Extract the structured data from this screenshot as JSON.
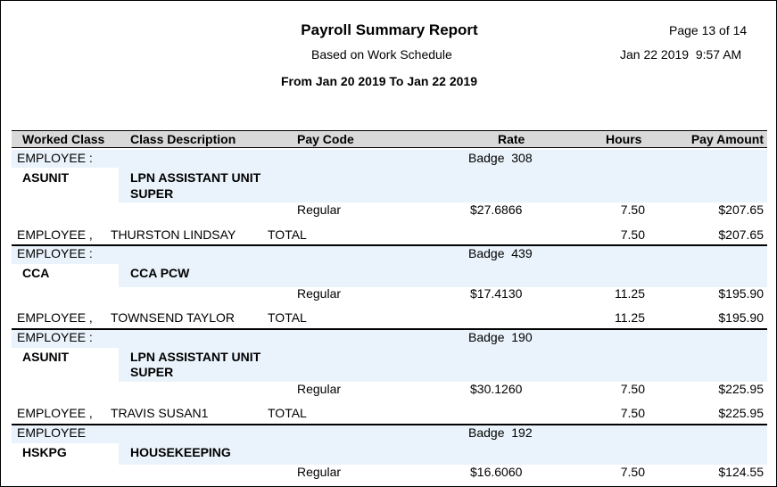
{
  "report": {
    "title": "Payroll Summary Report",
    "subtitle": "Based on Work Schedule",
    "date_range": "From Jan 20 2019 To Jan 22 2019",
    "page": "Page 13 of 14",
    "run_timestamp": "Jan 22 2019  9:57 AM"
  },
  "columns": {
    "worked_class": "Worked Class",
    "class_description": "Class Description",
    "pay_code": "Pay Code",
    "rate": "Rate",
    "hours": "Hours",
    "pay_amount": "Pay Amount"
  },
  "groups": [
    {
      "employee_label": "EMPLOYEE :",
      "badge": "Badge  308",
      "worked_class": "ASUNIT",
      "class_description_1": "LPN ASSISTANT UNIT",
      "class_description_2": "SUPER",
      "pay_code": "Regular",
      "rate": "$27.6866",
      "hours": "7.50",
      "pay_amount": "$207.65",
      "total_prefix": "EMPLOYEE ,",
      "total_name": "THURSTON LINDSAY",
      "total_label": "TOTAL",
      "total_hours": "7.50",
      "total_amount": "$207.65"
    },
    {
      "employee_label": "EMPLOYEE :",
      "badge": "Badge  439",
      "worked_class": "CCA",
      "class_description_1": "CCA PCW",
      "class_description_2": "",
      "pay_code": "Regular",
      "rate": "$17.4130",
      "hours": "11.25",
      "pay_amount": "$195.90",
      "total_prefix": "EMPLOYEE ,",
      "total_name": "TOWNSEND TAYLOR",
      "total_label": "TOTAL",
      "total_hours": "11.25",
      "total_amount": "$195.90"
    },
    {
      "employee_label": "EMPLOYEE :",
      "badge": "Badge  190",
      "worked_class": "ASUNIT",
      "class_description_1": "LPN ASSISTANT UNIT",
      "class_description_2": "SUPER",
      "pay_code": "Regular",
      "rate": "$30.1260",
      "hours": "7.50",
      "pay_amount": "$225.95",
      "total_prefix": "EMPLOYEE ,",
      "total_name": "TRAVIS SUSAN1",
      "total_label": "TOTAL",
      "total_hours": "7.50",
      "total_amount": "$225.95"
    },
    {
      "employee_label": "EMPLOYEE",
      "badge": "Badge  192",
      "worked_class": "HSKPG",
      "class_description_1": "HOUSEKEEPING",
      "class_description_2": "",
      "pay_code": "Regular",
      "rate": "$16.6060",
      "hours": "7.50",
      "pay_amount": "$124.55"
    }
  ]
}
